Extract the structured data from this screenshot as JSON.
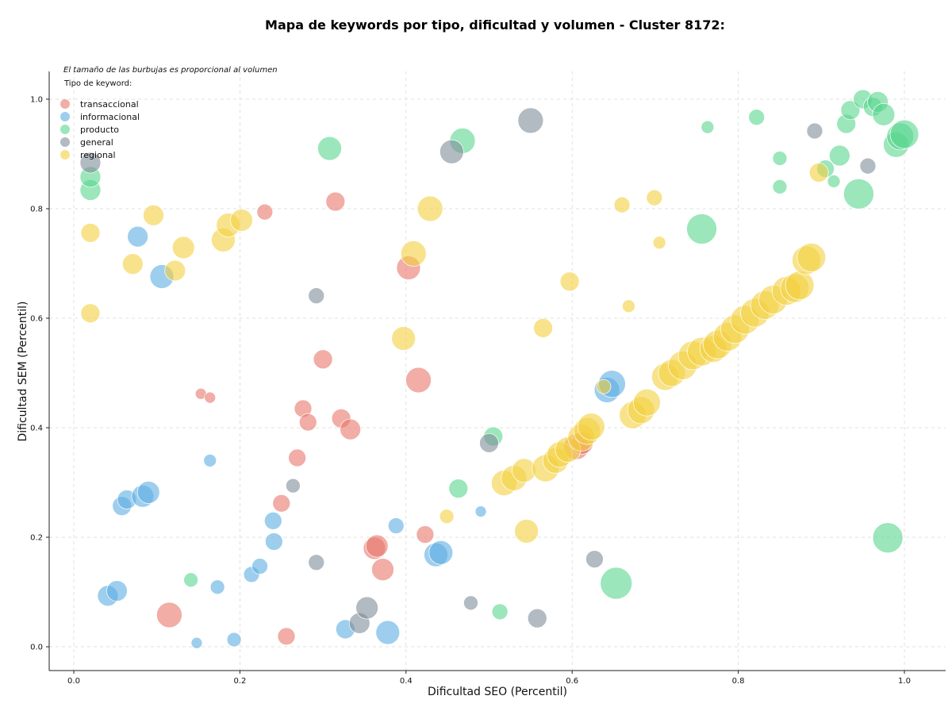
{
  "chart_data": {
    "type": "scatter",
    "title": "Mapa de keywords por tipo, dificultad y volumen - Cluster 8172:",
    "xlabel": "Dificultad SEO (Percentil)",
    "ylabel": "Dificultad SEM (Percentil)",
    "xlim": [
      -0.03,
      1.05
    ],
    "ylim": [
      -0.045,
      1.05
    ],
    "xticks": [
      "0.0",
      "0.2",
      "0.4",
      "0.6",
      "0.8",
      "1.0"
    ],
    "yticks": [
      "0.0",
      "0.2",
      "0.4",
      "0.6",
      "0.8",
      "1.0"
    ],
    "grid": true,
    "annotation": "El tamaño de las burbujas es proporcional al volumen",
    "legend_title": "Tipo de keyword:",
    "legend_position": "top-left",
    "series": [
      {
        "name": "transaccional",
        "color": "#e8766a",
        "points": [
          [
            0.115,
            0.058,
            16
          ],
          [
            0.153,
            0.462,
            7
          ],
          [
            0.164,
            0.455,
            7
          ],
          [
            0.23,
            0.794,
            10
          ],
          [
            0.25,
            0.262,
            11
          ],
          [
            0.256,
            0.019,
            11
          ],
          [
            0.269,
            0.345,
            11
          ],
          [
            0.276,
            0.435,
            11
          ],
          [
            0.282,
            0.41,
            11
          ],
          [
            0.3,
            0.525,
            12
          ],
          [
            0.315,
            0.813,
            12
          ],
          [
            0.322,
            0.417,
            12
          ],
          [
            0.333,
            0.397,
            13
          ],
          [
            0.362,
            0.18,
            14
          ],
          [
            0.365,
            0.184,
            14
          ],
          [
            0.372,
            0.141,
            14
          ],
          [
            0.403,
            0.692,
            15
          ],
          [
            0.415,
            0.487,
            16
          ],
          [
            0.423,
            0.205,
            11
          ],
          [
            0.605,
            0.365,
            16
          ],
          [
            0.612,
            0.372,
            14
          ]
        ]
      },
      {
        "name": "informacional",
        "color": "#5dade2",
        "points": [
          [
            0.041,
            0.093,
            13
          ],
          [
            0.052,
            0.102,
            13
          ],
          [
            0.058,
            0.257,
            12
          ],
          [
            0.064,
            0.269,
            12
          ],
          [
            0.077,
            0.749,
            13
          ],
          [
            0.083,
            0.275,
            14
          ],
          [
            0.09,
            0.282,
            14
          ],
          [
            0.106,
            0.676,
            15
          ],
          [
            0.148,
            0.007,
            7
          ],
          [
            0.164,
            0.34,
            8
          ],
          [
            0.173,
            0.109,
            9
          ],
          [
            0.193,
            0.013,
            9
          ],
          [
            0.214,
            0.132,
            10
          ],
          [
            0.224,
            0.147,
            10
          ],
          [
            0.24,
            0.23,
            11
          ],
          [
            0.241,
            0.192,
            11
          ],
          [
            0.327,
            0.032,
            12
          ],
          [
            0.378,
            0.026,
            15
          ],
          [
            0.388,
            0.221,
            10
          ],
          [
            0.436,
            0.168,
            15
          ],
          [
            0.442,
            0.172,
            15
          ],
          [
            0.49,
            0.247,
            7
          ],
          [
            0.642,
            0.469,
            16
          ],
          [
            0.648,
            0.48,
            17
          ]
        ]
      },
      {
        "name": "producto",
        "color": "#58d68d",
        "points": [
          [
            0.02,
            0.834,
            13
          ],
          [
            0.02,
            0.858,
            13
          ],
          [
            0.141,
            0.122,
            9
          ],
          [
            0.308,
            0.91,
            15
          ],
          [
            0.463,
            0.289,
            12
          ],
          [
            0.468,
            0.924,
            16
          ],
          [
            0.505,
            0.384,
            12
          ],
          [
            0.513,
            0.064,
            10
          ],
          [
            0.653,
            0.116,
            20
          ],
          [
            0.756,
            0.763,
            19
          ],
          [
            0.763,
            0.949,
            8
          ],
          [
            0.822,
            0.967,
            10
          ],
          [
            0.85,
            0.892,
            9
          ],
          [
            0.85,
            0.84,
            9
          ],
          [
            0.905,
            0.873,
            11
          ],
          [
            0.915,
            0.85,
            8
          ],
          [
            0.922,
            0.897,
            13
          ],
          [
            0.93,
            0.955,
            12
          ],
          [
            0.935,
            0.98,
            12
          ],
          [
            0.945,
            0.827,
            19
          ],
          [
            0.95,
            1.0,
            12
          ],
          [
            0.962,
            0.986,
            12
          ],
          [
            0.968,
            0.995,
            13
          ],
          [
            0.975,
            0.972,
            14
          ],
          [
            0.98,
            0.199,
            19
          ],
          [
            0.99,
            0.917,
            16
          ],
          [
            0.995,
            0.932,
            17
          ],
          [
            1.0,
            0.936,
            18
          ]
        ]
      },
      {
        "name": "general",
        "color": "#7f8c9a",
        "points": [
          [
            0.02,
            0.884,
            13
          ],
          [
            0.264,
            0.294,
            9
          ],
          [
            0.292,
            0.641,
            10
          ],
          [
            0.292,
            0.154,
            10
          ],
          [
            0.344,
            0.043,
            13
          ],
          [
            0.353,
            0.071,
            14
          ],
          [
            0.455,
            0.904,
            15
          ],
          [
            0.478,
            0.08,
            9
          ],
          [
            0.5,
            0.372,
            12
          ],
          [
            0.55,
            0.961,
            16
          ],
          [
            0.558,
            0.052,
            12
          ],
          [
            0.627,
            0.16,
            11
          ],
          [
            0.892,
            0.942,
            10
          ],
          [
            0.956,
            0.878,
            10
          ]
        ]
      },
      {
        "name": "regional",
        "color": "#f4d03f",
        "points": [
          [
            0.02,
            0.756,
            12
          ],
          [
            0.02,
            0.609,
            12
          ],
          [
            0.071,
            0.699,
            13
          ],
          [
            0.096,
            0.788,
            13
          ],
          [
            0.122,
            0.687,
            13
          ],
          [
            0.132,
            0.729,
            14
          ],
          [
            0.18,
            0.743,
            15
          ],
          [
            0.186,
            0.77,
            15
          ],
          [
            0.202,
            0.779,
            14
          ],
          [
            0.397,
            0.563,
            15
          ],
          [
            0.409,
            0.718,
            16
          ],
          [
            0.429,
            0.8,
            16
          ],
          [
            0.449,
            0.238,
            9
          ],
          [
            0.518,
            0.299,
            16
          ],
          [
            0.53,
            0.308,
            16
          ],
          [
            0.542,
            0.322,
            15
          ],
          [
            0.545,
            0.211,
            15
          ],
          [
            0.565,
            0.582,
            12
          ],
          [
            0.568,
            0.326,
            17
          ],
          [
            0.58,
            0.34,
            16
          ],
          [
            0.585,
            0.351,
            16
          ],
          [
            0.595,
            0.36,
            16
          ],
          [
            0.597,
            0.667,
            12
          ],
          [
            0.611,
            0.382,
            17
          ],
          [
            0.618,
            0.394,
            17
          ],
          [
            0.623,
            0.402,
            17
          ],
          [
            0.638,
            0.475,
            9
          ],
          [
            0.66,
            0.807,
            10
          ],
          [
            0.668,
            0.622,
            8
          ],
          [
            0.673,
            0.423,
            17
          ],
          [
            0.683,
            0.432,
            17
          ],
          [
            0.69,
            0.446,
            17
          ],
          [
            0.699,
            0.82,
            10
          ],
          [
            0.705,
            0.738,
            8
          ],
          [
            0.712,
            0.493,
            17
          ],
          [
            0.72,
            0.5,
            17
          ],
          [
            0.733,
            0.514,
            18
          ],
          [
            0.745,
            0.532,
            18
          ],
          [
            0.756,
            0.539,
            18
          ],
          [
            0.77,
            0.544,
            17
          ],
          [
            0.775,
            0.552,
            18
          ],
          [
            0.787,
            0.566,
            18
          ],
          [
            0.796,
            0.58,
            18
          ],
          [
            0.808,
            0.597,
            18
          ],
          [
            0.82,
            0.61,
            18
          ],
          [
            0.832,
            0.624,
            18
          ],
          [
            0.842,
            0.634,
            18
          ],
          [
            0.858,
            0.65,
            18
          ],
          [
            0.868,
            0.655,
            18
          ],
          [
            0.874,
            0.66,
            18
          ],
          [
            0.882,
            0.706,
            18
          ],
          [
            0.888,
            0.711,
            18
          ],
          [
            0.897,
            0.866,
            12
          ]
        ]
      }
    ]
  }
}
